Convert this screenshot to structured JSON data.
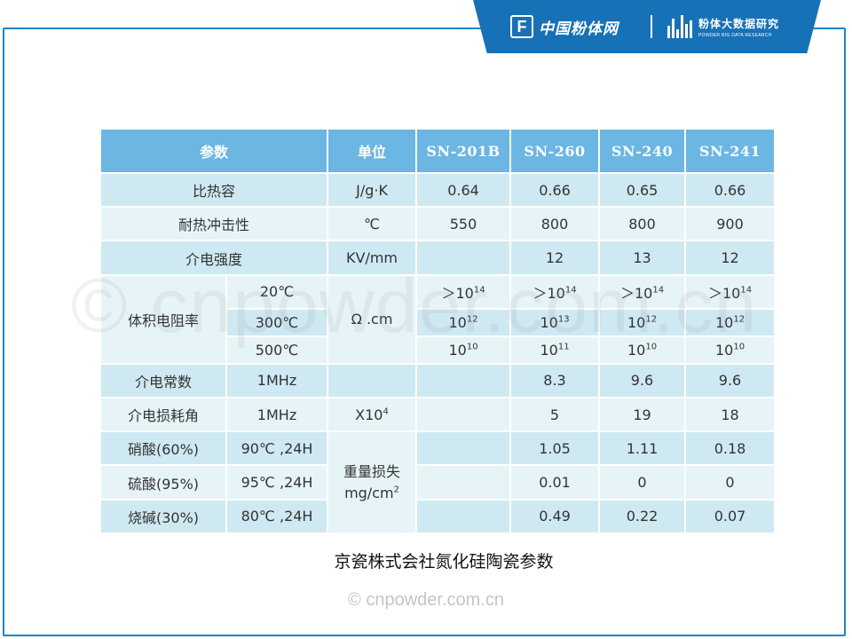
{
  "header": {
    "logo1_letter": "F",
    "logo1_text": "中国粉体网",
    "logo2_title": "粉体大数据研究",
    "logo2_subtitle": "POWDER BIG DATA RESEARCH"
  },
  "watermark_big": "© cnpowder.com.cn",
  "watermark_small": "© cnpowder.com.cn",
  "caption": "京瓷株式会社氮化硅陶瓷参数",
  "table": {
    "headers": {
      "param": "参数",
      "unit": "单位",
      "models": [
        "SN-201B",
        "SN-260",
        "SN-240",
        "SN-241"
      ]
    },
    "rows": {
      "specific_heat": {
        "label": "比热容",
        "unit": "J/g·K",
        "values": [
          "0.64",
          "0.66",
          "0.65",
          "0.66"
        ]
      },
      "thermal_shock": {
        "label": "耐热冲击性",
        "unit": "℃",
        "values": [
          "550",
          "800",
          "800",
          "900"
        ]
      },
      "dielectric_strength": {
        "label": "介电强度",
        "unit": "KV/mm",
        "values": [
          "",
          "12",
          "13",
          "12"
        ]
      },
      "volume_resistivity": {
        "label": "体积电阻率",
        "unit": "Ω .cm",
        "sub": [
          {
            "cond": "20℃",
            "values": [
              {
                "base": "＞10",
                "exp": "14"
              },
              {
                "base": "＞10",
                "exp": "14"
              },
              {
                "base": "＞10",
                "exp": "14"
              },
              {
                "base": "＞10",
                "exp": "14"
              }
            ]
          },
          {
            "cond": "300℃",
            "values": [
              {
                "base": "10",
                "exp": "12"
              },
              {
                "base": "10",
                "exp": "13"
              },
              {
                "base": "10",
                "exp": "12"
              },
              {
                "base": "10",
                "exp": "12"
              }
            ]
          },
          {
            "cond": "500℃",
            "values": [
              {
                "base": "10",
                "exp": "10"
              },
              {
                "base": "10",
                "exp": "11"
              },
              {
                "base": "10",
                "exp": "10"
              },
              {
                "base": "10",
                "exp": "10"
              }
            ]
          }
        ]
      },
      "dielectric_constant": {
        "label": "介电常数",
        "cond": "1MHz",
        "unit": "",
        "values": [
          "",
          "8.3",
          "9.6",
          "9.6"
        ]
      },
      "loss_angle": {
        "label": "介电损耗角",
        "cond": "1MHz",
        "unit_base": "X10",
        "unit_exp": "4",
        "values": [
          "",
          "5",
          "19",
          "18"
        ]
      },
      "corrosion": {
        "unit_line1": "重量损失",
        "unit_line2_base": "mg/cm",
        "unit_line2_exp": "2",
        "rows": [
          {
            "label": "硝酸(60%)",
            "cond": "90℃ ,24H",
            "values": [
              "",
              "1.05",
              "1.11",
              "0.18"
            ]
          },
          {
            "label": "硫酸(95%)",
            "cond": "95℃ ,24H",
            "values": [
              "",
              "0.01",
              "0",
              "0"
            ]
          },
          {
            "label": "烧碱(30%)",
            "cond": "80℃ ,24H",
            "values": [
              "",
              "0.49",
              "0.22",
              "0.07"
            ]
          }
        ]
      }
    }
  }
}
